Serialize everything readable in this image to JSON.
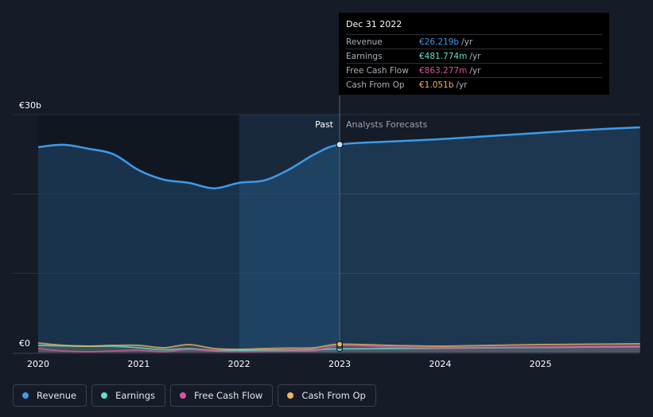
{
  "tooltip": {
    "date": "Dec 31 2022",
    "rows": [
      {
        "label": "Revenue",
        "value": "€26.219b",
        "unit": "/yr",
        "color": "#3d9be9"
      },
      {
        "label": "Earnings",
        "value": "€481.774m",
        "unit": "/yr",
        "color": "#5fe0cd"
      },
      {
        "label": "Free Cash Flow",
        "value": "€863.277m",
        "unit": "/yr",
        "color": "#d8559d"
      },
      {
        "label": "Cash From Op",
        "value": "€1.051b",
        "unit": "/yr",
        "color": "#f0b35e"
      }
    ]
  },
  "legend": [
    {
      "label": "Revenue",
      "color": "#3d9be9"
    },
    {
      "label": "Earnings",
      "color": "#5fe0cd"
    },
    {
      "label": "Free Cash Flow",
      "color": "#d8559d"
    },
    {
      "label": "Cash From Op",
      "color": "#f0b35e"
    }
  ],
  "chart_data": {
    "type": "area",
    "ylim": [
      0,
      30
    ],
    "y_ticks": [
      {
        "value": 30,
        "label": "€30b"
      },
      {
        "value": 0,
        "label": "€0"
      }
    ],
    "xlim": [
      2020.0,
      2025.99
    ],
    "x_ticks": [
      {
        "value": 2020,
        "label": "2020"
      },
      {
        "value": 2021,
        "label": "2021"
      },
      {
        "value": 2022,
        "label": "2022"
      },
      {
        "value": 2023,
        "label": "2023"
      },
      {
        "value": 2024,
        "label": "2024"
      },
      {
        "value": 2025,
        "label": "2025"
      }
    ],
    "past_label": "Past",
    "forecast_label": "Analysts Forecasts",
    "divider_x": 2023.0,
    "highlight_range": [
      2022.0,
      2023.0
    ],
    "series": [
      {
        "name": "Revenue",
        "color": "#3d9be9",
        "points": [
          [
            2020.0,
            25.9
          ],
          [
            2020.25,
            26.2
          ],
          [
            2020.5,
            25.7
          ],
          [
            2020.75,
            25.0
          ],
          [
            2021.0,
            23.0
          ],
          [
            2021.25,
            21.8
          ],
          [
            2021.5,
            21.4
          ],
          [
            2021.75,
            20.7
          ],
          [
            2022.0,
            21.4
          ],
          [
            2022.25,
            21.7
          ],
          [
            2022.5,
            23.1
          ],
          [
            2022.75,
            25.0
          ],
          [
            2023.0,
            26.22
          ],
          [
            2023.5,
            26.6
          ],
          [
            2024.0,
            26.9
          ],
          [
            2024.5,
            27.3
          ],
          [
            2025.0,
            27.7
          ],
          [
            2025.5,
            28.1
          ],
          [
            2025.99,
            28.4
          ]
        ]
      },
      {
        "name": "Earnings",
        "color": "#5fe0cd",
        "points": [
          [
            2020.0,
            0.9
          ],
          [
            2020.5,
            0.8
          ],
          [
            2020.75,
            0.8
          ],
          [
            2021.0,
            0.6
          ],
          [
            2021.25,
            0.35
          ],
          [
            2021.5,
            0.5
          ],
          [
            2021.75,
            0.25
          ],
          [
            2022.0,
            0.3
          ],
          [
            2022.5,
            0.3
          ],
          [
            2022.75,
            0.35
          ],
          [
            2023.0,
            0.48
          ],
          [
            2023.5,
            0.5
          ],
          [
            2024.0,
            0.55
          ],
          [
            2024.5,
            0.6
          ],
          [
            2025.0,
            0.65
          ],
          [
            2025.5,
            0.7
          ],
          [
            2025.99,
            0.75
          ]
        ]
      },
      {
        "name": "Free Cash Flow",
        "color": "#d8559d",
        "points": [
          [
            2020.0,
            0.5
          ],
          [
            2020.25,
            0.2
          ],
          [
            2020.5,
            0.1
          ],
          [
            2020.75,
            0.2
          ],
          [
            2021.0,
            0.3
          ],
          [
            2021.25,
            0.1
          ],
          [
            2021.5,
            0.4
          ],
          [
            2021.75,
            0.2
          ],
          [
            2022.0,
            0.1
          ],
          [
            2022.5,
            0.2
          ],
          [
            2022.75,
            0.25
          ],
          [
            2023.0,
            0.86
          ],
          [
            2023.5,
            0.7
          ],
          [
            2024.0,
            0.6
          ],
          [
            2024.5,
            0.65
          ],
          [
            2025.0,
            0.7
          ],
          [
            2025.5,
            0.75
          ],
          [
            2025.99,
            0.8
          ]
        ]
      },
      {
        "name": "Cash From Op",
        "color": "#f0b35e",
        "points": [
          [
            2020.0,
            1.2
          ],
          [
            2020.25,
            0.9
          ],
          [
            2020.5,
            0.8
          ],
          [
            2020.75,
            0.9
          ],
          [
            2021.0,
            0.9
          ],
          [
            2021.25,
            0.6
          ],
          [
            2021.5,
            1.0
          ],
          [
            2021.75,
            0.5
          ],
          [
            2022.0,
            0.4
          ],
          [
            2022.25,
            0.5
          ],
          [
            2022.5,
            0.55
          ],
          [
            2022.75,
            0.6
          ],
          [
            2023.0,
            1.05
          ],
          [
            2023.5,
            0.9
          ],
          [
            2024.0,
            0.8
          ],
          [
            2024.5,
            0.9
          ],
          [
            2025.0,
            1.0
          ],
          [
            2025.5,
            1.05
          ],
          [
            2025.99,
            1.1
          ]
        ]
      }
    ]
  }
}
